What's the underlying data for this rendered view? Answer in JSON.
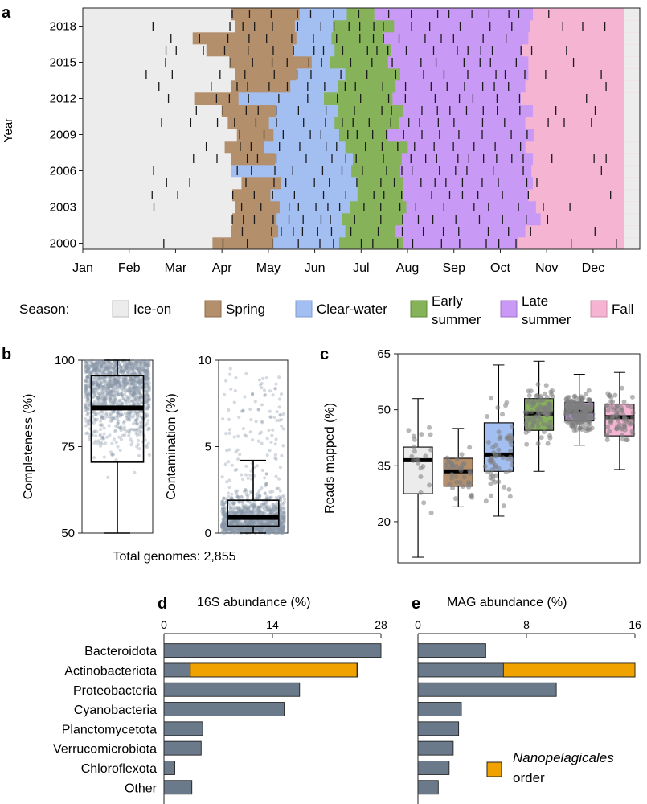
{
  "panels": {
    "a": "a",
    "b": "b",
    "c": "c",
    "d": "d",
    "e": "e"
  },
  "panel_a": {
    "ylabel": "Year",
    "year_ticks": [
      "2018",
      "2015",
      "2012",
      "2009",
      "2006",
      "2003",
      "2000"
    ],
    "month_ticks": [
      "Jan",
      "Feb",
      "Mar",
      "Apr",
      "May",
      "Jun",
      "Jul",
      "Aug",
      "Sep",
      "Oct",
      "Nov",
      "Dec"
    ],
    "legend_title": "Season:",
    "legend": [
      {
        "key": "ice",
        "label": "Ice-on",
        "color": "#ececec"
      },
      {
        "key": "spring",
        "label": "Spring",
        "color": "#b48f6b"
      },
      {
        "key": "clear",
        "label": "Clear-water",
        "color": "#a3bff2"
      },
      {
        "key": "early",
        "label": "Early summer",
        "line1": "Early",
        "line2": "summer",
        "color": "#86b25a"
      },
      {
        "key": "late",
        "label": "Late summer",
        "line1": "Late",
        "line2": "summer",
        "color": "#c99af5"
      },
      {
        "key": "fall",
        "label": "Fall",
        "color": "#f6b4d3"
      }
    ]
  },
  "panel_b": {
    "total_label": "Total genomes: 2,855"
  },
  "panel_d": {
    "title": "16S abundance (%)"
  },
  "panel_e": {
    "title": "MAG abundance (%)",
    "legend_italic": "Nanopelagicales",
    "legend_rest": "order"
  },
  "chart_data": [
    {
      "panel": "a",
      "type": "heatmap",
      "title": "",
      "xlabel": "",
      "ylabel": "Year",
      "years_shown": [
        2000,
        2001,
        2002,
        2003,
        2004,
        2005,
        2006,
        2007,
        2008,
        2009,
        2010,
        2011,
        2012,
        2013,
        2014,
        2015,
        2016,
        2017,
        2018,
        2019
      ],
      "season_start_day_of_year": {
        "2000": {
          "spring": 85,
          "clear": 125,
          "early": 168,
          "late": 210,
          "fall": 285
        },
        "2001": {
          "spring": 97,
          "clear": 128,
          "early": 172,
          "late": 205,
          "fall": 290
        },
        "2002": {
          "spring": 98,
          "clear": 127,
          "early": 170,
          "late": 210,
          "fall": 300
        },
        "2003": {
          "spring": 100,
          "clear": 129,
          "early": 175,
          "late": 212,
          "fall": 297
        },
        "2004": {
          "spring": 98,
          "clear": 123,
          "early": 180,
          "late": 210,
          "fall": 292
        },
        "2005": {
          "spring": 104,
          "clear": 130,
          "early": 180,
          "late": 210,
          "fall": 295
        },
        "2006": {
          "spring": 98,
          "clear": 97,
          "early": 176,
          "late": 208,
          "fall": 294
        },
        "2007": {
          "spring": 97,
          "clear": 126,
          "early": 177,
          "late": 209,
          "fall": 295
        },
        "2008": {
          "spring": 93,
          "clear": 119,
          "early": 172,
          "late": 213,
          "fall": 290
        },
        "2009": {
          "spring": 101,
          "clear": 125,
          "early": 168,
          "late": 200,
          "fall": 296
        },
        "2010": {
          "spring": 95,
          "clear": 122,
          "early": 165,
          "late": 207,
          "fall": 290
        },
        "2011": {
          "spring": 91,
          "clear": 127,
          "early": 167,
          "late": 210,
          "fall": 295
        },
        "2012": {
          "spring": 73,
          "clear": 102,
          "early": 158,
          "late": 203,
          "fall": 287
        },
        "2013": {
          "spring": 97,
          "clear": 136,
          "early": 167,
          "late": 205,
          "fall": 290
        },
        "2014": {
          "spring": 100,
          "clear": 140,
          "early": 172,
          "late": 208,
          "fall": 292
        },
        "2015": {
          "spring": 96,
          "clear": 150,
          "early": 162,
          "late": 200,
          "fall": 292
        },
        "2016": {
          "spring": 81,
          "clear": 138,
          "early": 165,
          "late": 202,
          "fall": 288
        },
        "2017": {
          "spring": 72,
          "clear": 140,
          "early": 163,
          "late": 197,
          "fall": 292
        },
        "2018": {
          "spring": 100,
          "clear": 139,
          "early": 164,
          "late": 204,
          "fall": 293
        },
        "2019": {
          "spring": 97,
          "clear": 142,
          "early": 173,
          "late": 191,
          "fall": 295
        }
      },
      "month_ticks": [
        "Jan",
        "Feb",
        "Mar",
        "Apr",
        "May",
        "Jun",
        "Jul",
        "Aug",
        "Sep",
        "Oct",
        "Nov",
        "Dec"
      ],
      "year_ticks": [
        2000,
        2003,
        2006,
        2009,
        2012,
        2015,
        2018
      ],
      "marks": "vertical ticks indicate individual sampling dates"
    },
    {
      "panel": "b",
      "type": "box",
      "series": [
        {
          "name": "Completeness",
          "ylabel": "Completeness (%)",
          "ylim": [
            50,
            100
          ],
          "yticks": [
            50,
            75,
            100
          ],
          "box": {
            "min": 50,
            "q1": 70.5,
            "median": 86.2,
            "q3": 95.5,
            "max": 100
          }
        },
        {
          "name": "Contamination",
          "ylabel": "Contamination (%)",
          "ylim": [
            0,
            10
          ],
          "yticks": [
            0,
            5,
            10
          ],
          "box": {
            "min": 0,
            "q1": 0.4,
            "median": 0.9,
            "q3": 1.9,
            "max": 4.2
          }
        }
      ],
      "n": 2855
    },
    {
      "panel": "c",
      "type": "box",
      "ylabel": "Reads mapped (%)",
      "ylim": [
        9,
        65
      ],
      "yticks": [
        20,
        35,
        50,
        65
      ],
      "categories": [
        "Ice-on",
        "Spring",
        "Clear-water",
        "Early summer",
        "Late summer",
        "Fall"
      ],
      "series": [
        {
          "name": "Ice-on",
          "min": 10.5,
          "q1": 27.5,
          "median": 36.5,
          "q3": 40,
          "max": 53,
          "color": "#ececec"
        },
        {
          "name": "Spring",
          "min": 24,
          "q1": 29.5,
          "median": 33.5,
          "q3": 37,
          "max": 45,
          "color": "#b48f6b"
        },
        {
          "name": "Clear-water",
          "min": 21.5,
          "q1": 33.5,
          "median": 38,
          "q3": 46.5,
          "max": 62,
          "color": "#a3bff2"
        },
        {
          "name": "Early summer",
          "min": 33.5,
          "q1": 44.5,
          "median": 49,
          "q3": 53,
          "max": 63,
          "color": "#86b25a"
        },
        {
          "name": "Late summer",
          "min": 40.5,
          "q1": 47,
          "median": 49.5,
          "q3": 52,
          "max": 59.5,
          "color": "#c99af5"
        },
        {
          "name": "Fall",
          "min": 34,
          "q1": 43,
          "median": 48,
          "q3": 51.5,
          "max": 60,
          "color": "#f6b4d3"
        }
      ]
    },
    {
      "panel": "d",
      "type": "bar",
      "title": "16S abundance (%)",
      "xlim": [
        0,
        28
      ],
      "xticks": [
        0,
        14,
        28
      ],
      "categories": [
        "Bacteroidota",
        "Actinobacteriota",
        "Proteobacteria",
        "Cyanobacteria",
        "Planctomycetota",
        "Verrucomicrobiota",
        "Chloroflexota",
        "Other"
      ],
      "series": [
        {
          "name": "Total",
          "values": [
            28,
            25,
            17.5,
            15.5,
            5,
            4.8,
            1.4,
            3.6
          ],
          "color": "#6b7a8a"
        },
        {
          "name": "Nanopelagicales order",
          "values": [
            0,
            21.5,
            0,
            0,
            0,
            0,
            0,
            0
          ],
          "offset": [
            0,
            3.4,
            0,
            0,
            0,
            0,
            0,
            0
          ],
          "color": "#f0a300"
        }
      ]
    },
    {
      "panel": "e",
      "type": "bar",
      "title": "MAG abundance (%)",
      "xlim": [
        0,
        16
      ],
      "xticks": [
        0,
        8,
        16
      ],
      "categories": [
        "Bacteroidota",
        "Actinobacteriota",
        "Proteobacteria",
        "Cyanobacteria",
        "Planctomycetota",
        "Verrucomicrobiota",
        "Chloroflexota",
        "Other"
      ],
      "series": [
        {
          "name": "Total",
          "values": [
            5,
            16,
            10.2,
            3.2,
            3,
            2.6,
            2.3,
            1.5
          ],
          "color": "#6b7a8a"
        },
        {
          "name": "Nanopelagicales order",
          "values": [
            0,
            9.7,
            0,
            0,
            0,
            0,
            0,
            0
          ],
          "offset": [
            0,
            6.3,
            0,
            0,
            0,
            0,
            0,
            0
          ],
          "color": "#f0a300"
        }
      ]
    }
  ]
}
